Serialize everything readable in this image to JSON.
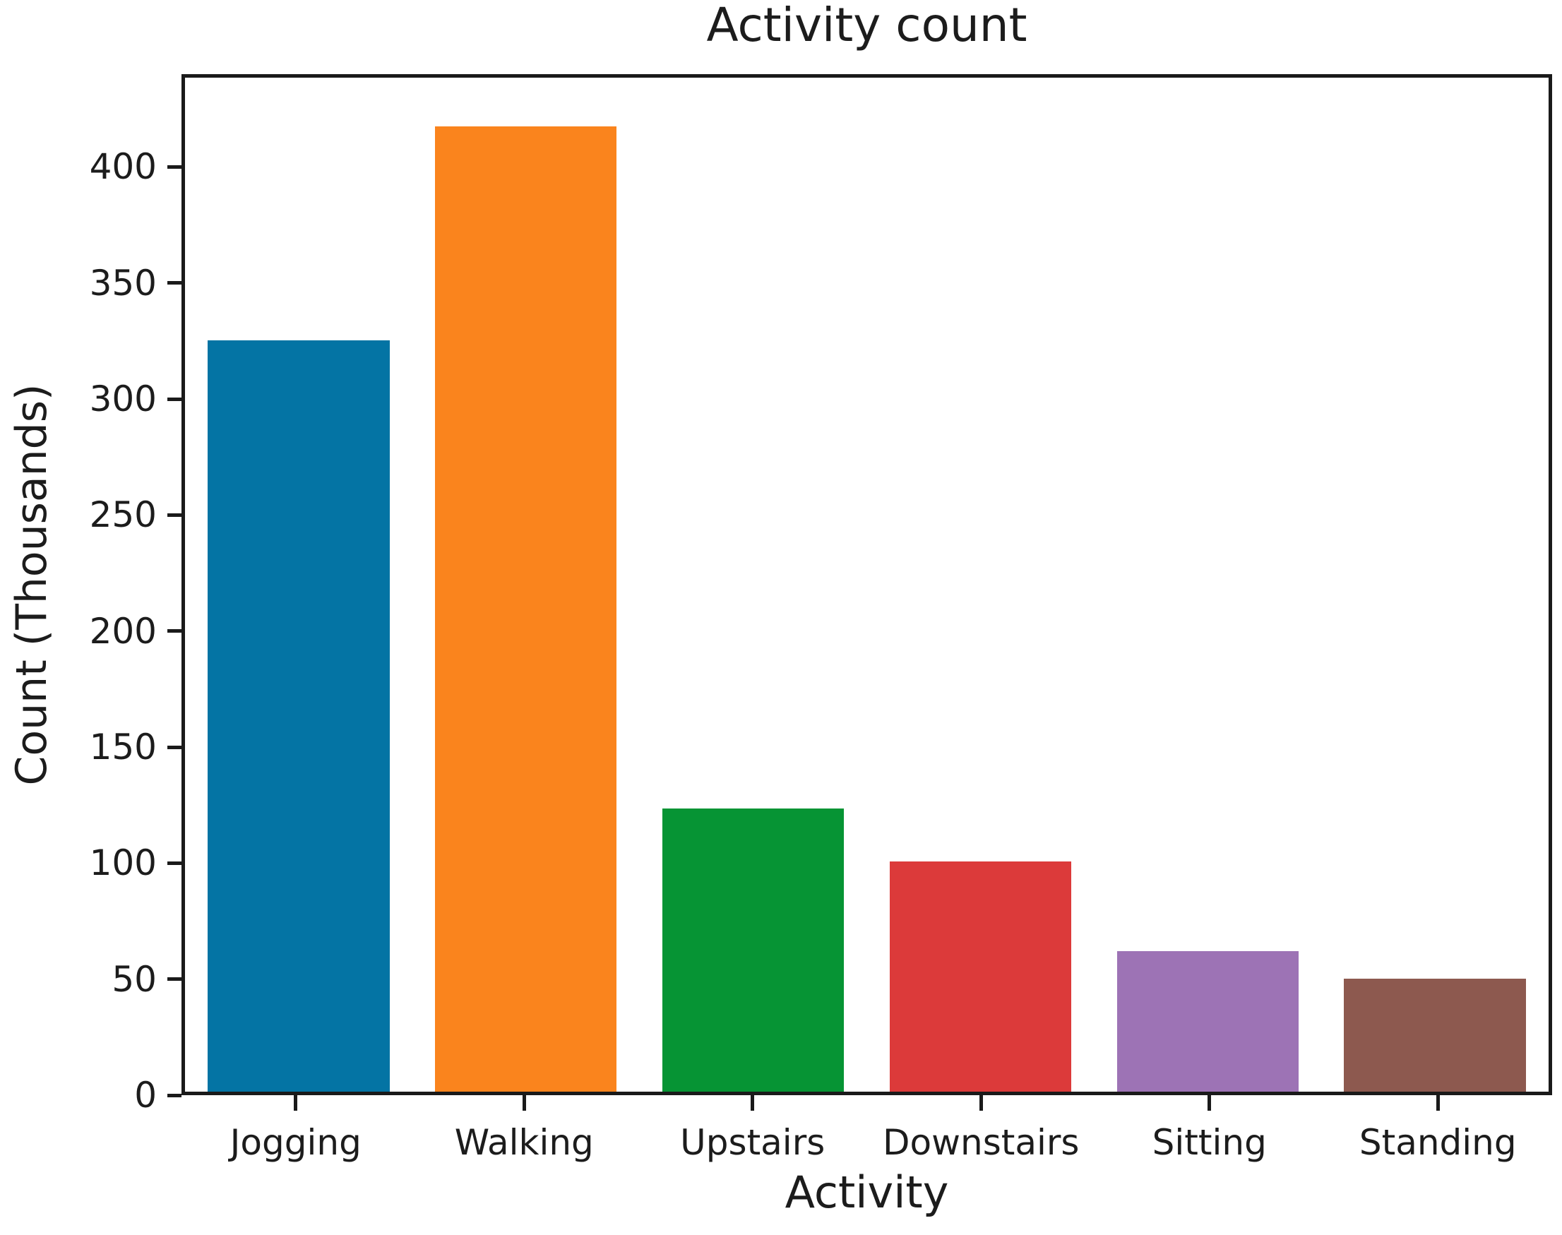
{
  "chart_data": {
    "type": "bar",
    "title": "Activity count",
    "xlabel": "Activity",
    "ylabel": "Count (Thousands)",
    "categories": [
      "Jogging",
      "Walking",
      "Upstairs",
      "Downstairs",
      "Sitting",
      "Standing"
    ],
    "values": [
      326,
      419,
      123,
      100,
      61,
      49
    ],
    "bar_colors": [
      "#0474a4",
      "#fa841d",
      "#069434",
      "#dc3a3a",
      "#9d73b5",
      "#8d594f"
    ],
    "y_ticks": [
      0,
      50,
      100,
      150,
      200,
      250,
      300,
      350,
      400
    ],
    "ylim": [
      0,
      440
    ],
    "bar_width_fraction": 0.8,
    "grid": false,
    "legend": "none",
    "spine_color": "#1a1a1a",
    "text_color": "#1c1c1c",
    "background": "#ffffff"
  }
}
